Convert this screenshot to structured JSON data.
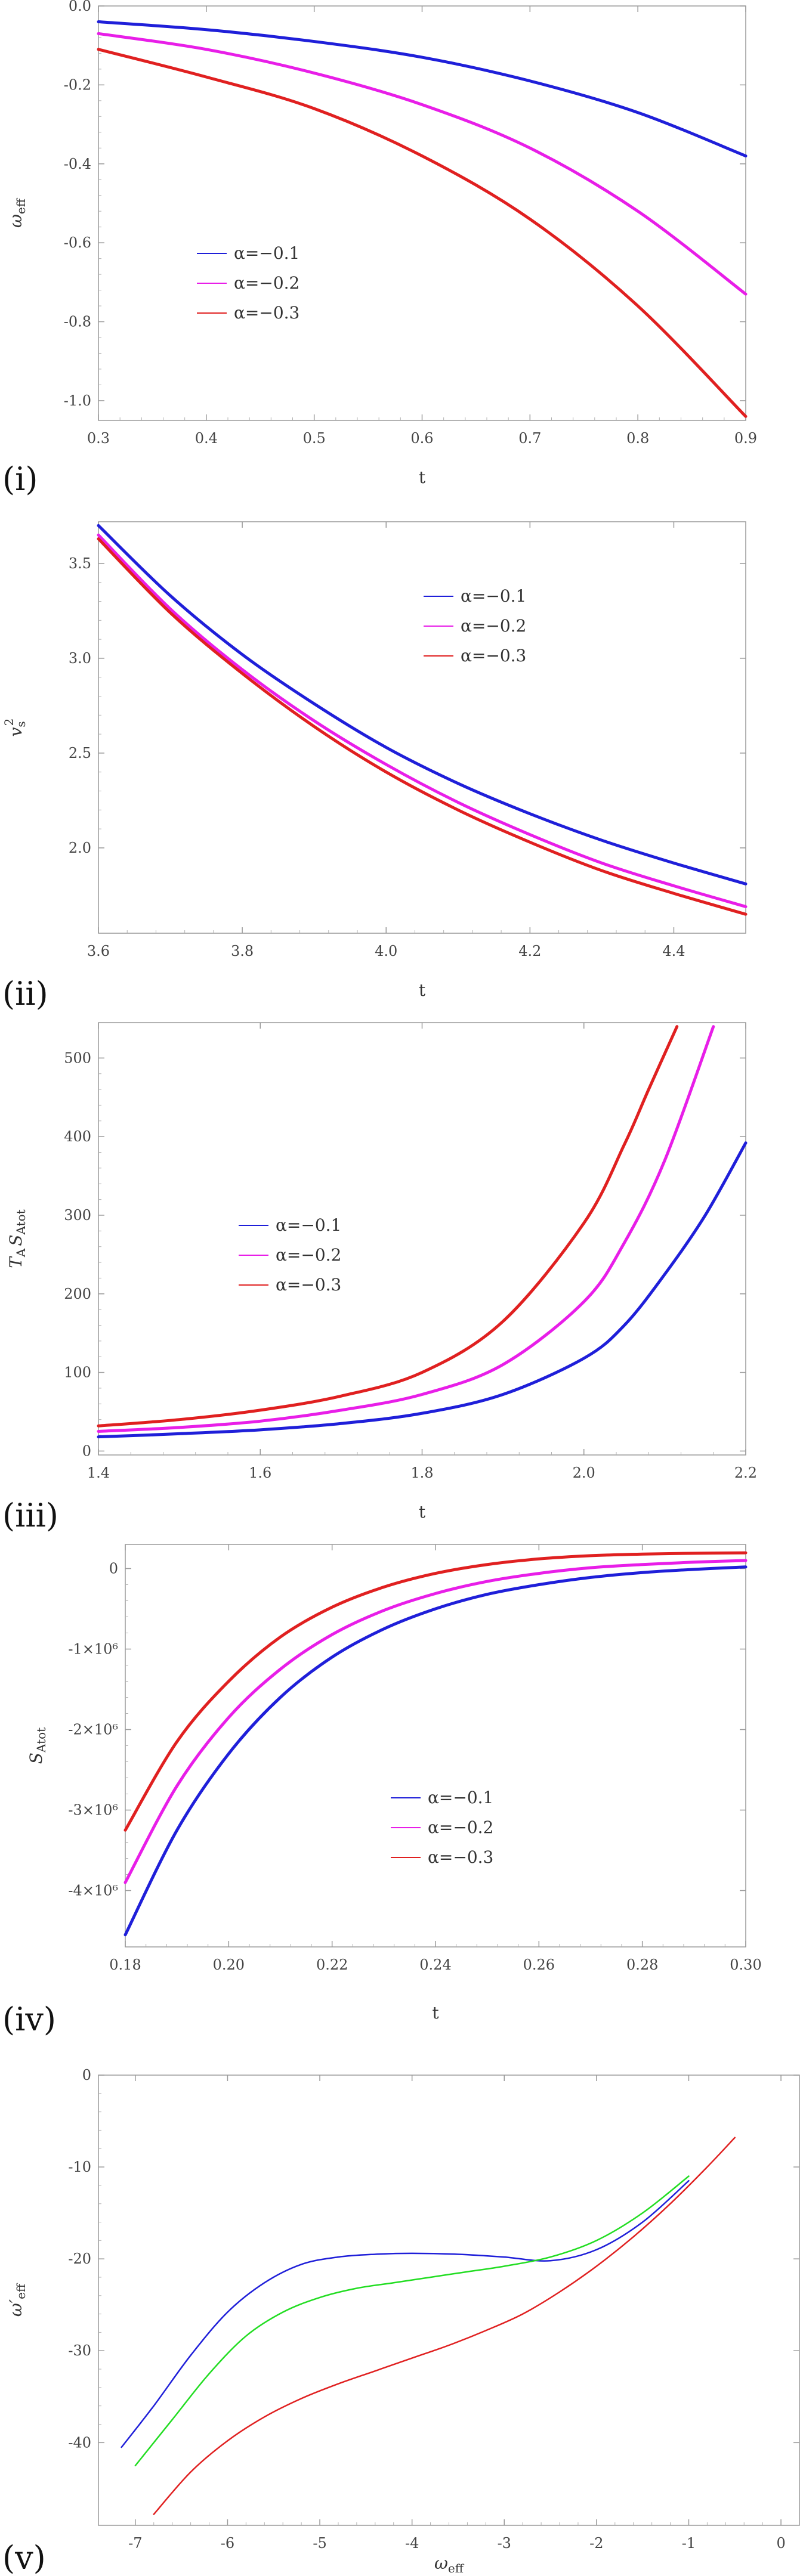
{
  "chart_data": [
    {
      "type": "line",
      "panel_label": "(i)",
      "xlabel": "t",
      "ylabel_main": "ω",
      "ylabel_sub": "eff",
      "xlim": [
        0.3,
        0.9
      ],
      "ylim": [
        -1.05,
        0.0
      ],
      "xticks": [
        0.3,
        0.4,
        0.5,
        0.6,
        0.7,
        0.8,
        0.9
      ],
      "xtick_labels": [
        "0.3",
        "0.4",
        "0.5",
        "0.6",
        "0.7",
        "0.8",
        "0.9"
      ],
      "yticks": [
        0.0,
        -0.2,
        -0.4,
        -0.6,
        -0.8,
        -1.0
      ],
      "ytick_labels": [
        "0.0",
        "-0.2",
        "-0.4",
        "-0.6",
        "-0.8",
        "-1.0"
      ],
      "legend": [
        "α=−0.1",
        "α=−0.2",
        "α=−0.3"
      ],
      "legend_position": "lower-left",
      "series": [
        {
          "name": "α=−0.1",
          "color": "#1f1fd9",
          "x": [
            0.3,
            0.4,
            0.5,
            0.6,
            0.7,
            0.8,
            0.9
          ],
          "y": [
            -0.04,
            -0.06,
            -0.09,
            -0.13,
            -0.19,
            -0.27,
            -0.38
          ]
        },
        {
          "name": "α=−0.2",
          "color": "#e81ee8",
          "x": [
            0.3,
            0.4,
            0.5,
            0.6,
            0.7,
            0.8,
            0.9
          ],
          "y": [
            -0.07,
            -0.11,
            -0.17,
            -0.25,
            -0.36,
            -0.52,
            -0.73
          ]
        },
        {
          "name": "α=−0.3",
          "color": "#e02020",
          "x": [
            0.3,
            0.4,
            0.5,
            0.6,
            0.7,
            0.8,
            0.9
          ],
          "y": [
            -0.11,
            -0.18,
            -0.26,
            -0.38,
            -0.54,
            -0.76,
            -1.04
          ]
        }
      ]
    },
    {
      "type": "line",
      "panel_label": "(ii)",
      "xlabel": "t",
      "ylabel_main": "v",
      "ylabel_sub": "s",
      "ylabel_sup": "2",
      "xlim": [
        3.6,
        4.5
      ],
      "ylim": [
        1.55,
        3.72
      ],
      "xticks": [
        3.6,
        3.8,
        4.0,
        4.2,
        4.4
      ],
      "xtick_labels": [
        "3.6",
        "3.8",
        "4.0",
        "4.2",
        "4.4"
      ],
      "yticks": [
        2.0,
        2.5,
        3.0,
        3.5
      ],
      "ytick_labels": [
        "2.0",
        "2.5",
        "3.0",
        "3.5"
      ],
      "legend": [
        "α=−0.1",
        "α=−0.2",
        "α=−0.3"
      ],
      "legend_position": "top-right",
      "series": [
        {
          "name": "α=−0.1",
          "color": "#1f1fd9",
          "x": [
            3.6,
            3.7,
            3.8,
            3.9,
            4.0,
            4.1,
            4.2,
            4.3,
            4.4,
            4.5
          ],
          "y": [
            3.7,
            3.33,
            3.02,
            2.76,
            2.53,
            2.34,
            2.18,
            2.04,
            1.92,
            1.81
          ]
        },
        {
          "name": "α=−0.2",
          "color": "#e81ee8",
          "x": [
            3.6,
            3.7,
            3.8,
            3.9,
            4.0,
            4.1,
            4.2,
            4.3,
            4.4,
            4.5
          ],
          "y": [
            3.65,
            3.26,
            2.94,
            2.67,
            2.44,
            2.24,
            2.07,
            1.92,
            1.8,
            1.69
          ]
        },
        {
          "name": "α=−0.3",
          "color": "#e02020",
          "x": [
            3.6,
            3.7,
            3.8,
            3.9,
            4.0,
            4.1,
            4.2,
            4.3,
            4.4,
            4.5
          ],
          "y": [
            3.63,
            3.24,
            2.92,
            2.64,
            2.4,
            2.2,
            2.03,
            1.88,
            1.76,
            1.65
          ]
        }
      ]
    },
    {
      "type": "line",
      "panel_label": "(iii)",
      "xlabel": "t",
      "ylabel_main": "T",
      "ylabel_sub": "A",
      "ylabel_main2": "S",
      "ylabel_sub2": "Atot",
      "xlim": [
        1.4,
        2.2
      ],
      "ylim": [
        -5,
        545
      ],
      "xticks": [
        1.4,
        1.6,
        1.8,
        2.0,
        2.2
      ],
      "xtick_labels": [
        "1.4",
        "1.6",
        "1.8",
        "2.0",
        "2.2"
      ],
      "yticks": [
        0,
        100,
        200,
        300,
        400,
        500
      ],
      "ytick_labels": [
        "0",
        "100",
        "200",
        "300",
        "400",
        "500"
      ],
      "legend": [
        "α=−0.1",
        "α=−0.2",
        "α=−0.3"
      ],
      "legend_position": "center-left",
      "series": [
        {
          "name": "α=−0.1",
          "color": "#1f1fd9",
          "x": [
            1.4,
            1.5,
            1.6,
            1.7,
            1.8,
            1.9,
            2.0,
            2.05,
            2.1,
            2.15,
            2.2
          ],
          "y": [
            18,
            22,
            27,
            35,
            48,
            72,
            118,
            160,
            225,
            300,
            392
          ]
        },
        {
          "name": "α=−0.2",
          "color": "#e81ee8",
          "x": [
            1.4,
            1.5,
            1.6,
            1.7,
            1.8,
            1.9,
            2.0,
            2.05,
            2.1,
            2.16
          ],
          "y": [
            25,
            30,
            38,
            52,
            72,
            110,
            190,
            265,
            370,
            540
          ]
        },
        {
          "name": "α=−0.3",
          "color": "#e02020",
          "x": [
            1.4,
            1.5,
            1.6,
            1.7,
            1.8,
            1.9,
            2.0,
            2.05,
            2.08,
            2.115
          ],
          "y": [
            32,
            40,
            52,
            70,
            100,
            165,
            290,
            390,
            460,
            540
          ]
        }
      ]
    },
    {
      "type": "line",
      "panel_label": "(iv)",
      "xlabel": "t",
      "ylabel_main": "S",
      "ylabel_sub": "Atot",
      "xlim": [
        0.18,
        0.3
      ],
      "ylim": [
        -4700000,
        300000
      ],
      "xticks": [
        0.18,
        0.2,
        0.22,
        0.24,
        0.26,
        0.28,
        0.3
      ],
      "xtick_labels": [
        "0.18",
        "0.20",
        "0.22",
        "0.24",
        "0.26",
        "0.28",
        "0.30"
      ],
      "yticks": [
        0,
        -1000000,
        -2000000,
        -3000000,
        -4000000
      ],
      "ytick_labels": [
        "0",
        "-1×10⁶",
        "-2×10⁶",
        "-3×10⁶",
        "-4×10⁶"
      ],
      "legend": [
        "α=−0.1",
        "α=−0.2",
        "α=−0.3"
      ],
      "legend_position": "center-right",
      "series": [
        {
          "name": "α=−0.1",
          "color": "#1f1fd9",
          "x": [
            0.18,
            0.19,
            0.2,
            0.21,
            0.22,
            0.23,
            0.24,
            0.25,
            0.26,
            0.27,
            0.28,
            0.29,
            0.3
          ],
          "y": [
            -4550000,
            -3250000,
            -2300000,
            -1600000,
            -1100000,
            -750000,
            -500000,
            -320000,
            -200000,
            -110000,
            -50000,
            -10000,
            20000
          ]
        },
        {
          "name": "α=−0.2",
          "color": "#e81ee8",
          "x": [
            0.18,
            0.19,
            0.2,
            0.21,
            0.22,
            0.23,
            0.24,
            0.25,
            0.26,
            0.27,
            0.28,
            0.29,
            0.3
          ],
          "y": [
            -3900000,
            -2700000,
            -1850000,
            -1250000,
            -820000,
            -520000,
            -310000,
            -160000,
            -60000,
            10000,
            50000,
            80000,
            100000
          ]
        },
        {
          "name": "α=−0.3",
          "color": "#e02020",
          "x": [
            0.18,
            0.19,
            0.2,
            0.21,
            0.22,
            0.23,
            0.24,
            0.25,
            0.26,
            0.27,
            0.28,
            0.29,
            0.3
          ],
          "y": [
            -3250000,
            -2150000,
            -1400000,
            -850000,
            -480000,
            -230000,
            -60000,
            50000,
            120000,
            160000,
            180000,
            190000,
            195000
          ]
        }
      ]
    },
    {
      "type": "line",
      "panel_label": "(v)",
      "xlabel_main": "ω",
      "xlabel_sub": "eff",
      "ylabel_main": "ω′",
      "ylabel_sub": "eff",
      "xlim": [
        -7.4,
        0.2
      ],
      "ylim": [
        -49,
        0
      ],
      "xticks": [
        -7,
        -6,
        -5,
        -4,
        -3,
        -2,
        -1,
        0
      ],
      "xtick_labels": [
        "-7",
        "-6",
        "-5",
        "-4",
        "-3",
        "-2",
        "-1",
        "0"
      ],
      "yticks": [
        0,
        -10,
        -20,
        -30,
        -40
      ],
      "ytick_labels": [
        "0",
        "-10",
        "-20",
        "-30",
        "-40"
      ],
      "legend": [],
      "series": [
        {
          "name": "blue",
          "color": "#1f1fd9",
          "x": [
            -7.15,
            -6.8,
            -6.4,
            -6.0,
            -5.6,
            -5.2,
            -4.8,
            -4.4,
            -4.0,
            -3.5,
            -3.0,
            -2.5,
            -2.0,
            -1.5,
            -1.0
          ],
          "y": [
            -40.5,
            -36.0,
            -30.5,
            -25.8,
            -22.6,
            -20.6,
            -19.8,
            -19.5,
            -19.4,
            -19.5,
            -19.8,
            -20.2,
            -19.0,
            -16.0,
            -11.5
          ]
        },
        {
          "name": "green",
          "color": "#22dd22",
          "x": [
            -7.0,
            -6.6,
            -6.2,
            -5.8,
            -5.4,
            -5.0,
            -4.6,
            -4.2,
            -3.8,
            -3.4,
            -3.0,
            -2.5,
            -2.0,
            -1.5,
            -1.0
          ],
          "y": [
            -42.5,
            -37.5,
            -32.5,
            -28.4,
            -25.8,
            -24.2,
            -23.2,
            -22.6,
            -22.0,
            -21.4,
            -20.8,
            -19.8,
            -18.0,
            -15.0,
            -11.0
          ]
        },
        {
          "name": "red",
          "color": "#e02020",
          "x": [
            -6.8,
            -6.4,
            -6.0,
            -5.6,
            -5.2,
            -4.8,
            -4.4,
            -4.0,
            -3.6,
            -3.2,
            -2.8,
            -2.4,
            -2.0,
            -1.6,
            -1.2,
            -0.8,
            -0.5
          ],
          "y": [
            -47.8,
            -43.2,
            -39.8,
            -37.2,
            -35.2,
            -33.6,
            -32.2,
            -30.8,
            -29.4,
            -27.8,
            -26.0,
            -23.6,
            -20.8,
            -17.6,
            -14.0,
            -10.0,
            -6.8
          ]
        }
      ]
    }
  ]
}
